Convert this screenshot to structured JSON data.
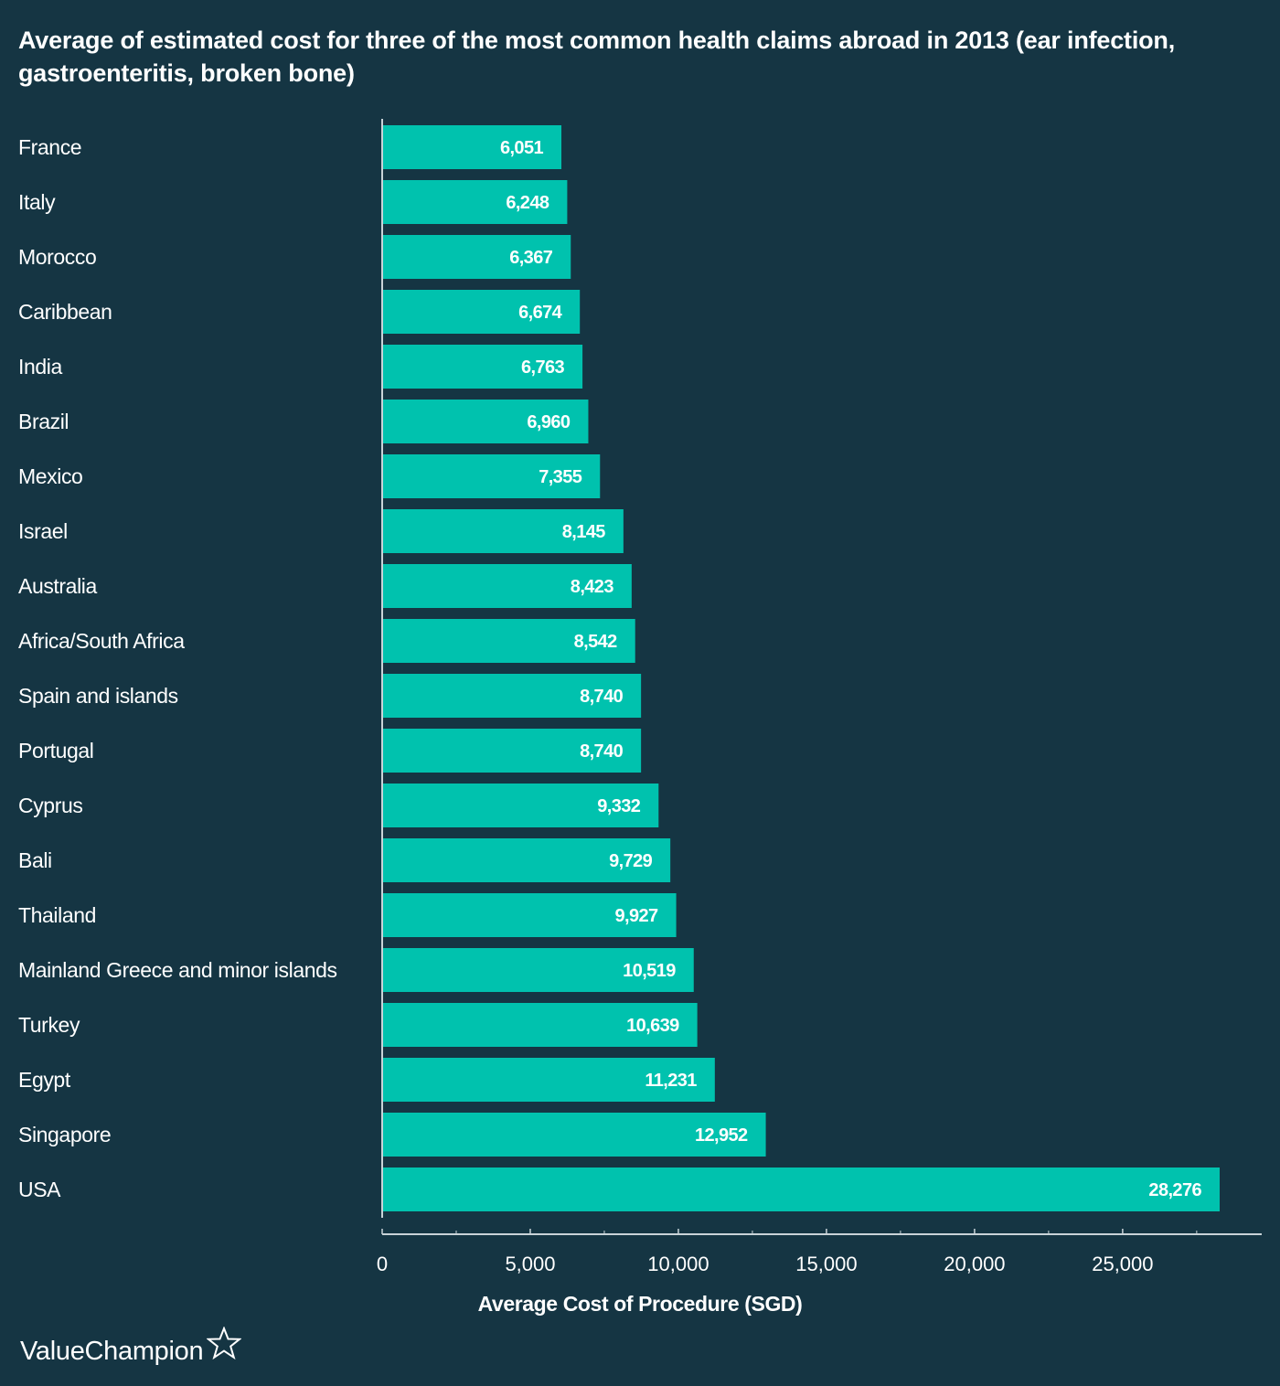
{
  "brand": {
    "name": "ValueChampion",
    "icon": "star-outline-icon"
  },
  "colors": {
    "background": "#153543",
    "bar": "#00C2AE",
    "text": "#ffffff",
    "axis": "#c9d3d8"
  },
  "chart_data": {
    "type": "bar",
    "orientation": "horizontal",
    "title": "Average of estimated cost for three of the most common health claims abroad in 2013 (ear infection, gastroenteritis, broken bone)",
    "xlabel": "Average Cost of Procedure (SGD)",
    "ylabel": "",
    "xlim": [
      0,
      29500
    ],
    "xticks": [
      0,
      5000,
      10000,
      15000,
      20000,
      25000
    ],
    "xtick_labels": [
      "0",
      "5,000",
      "10,000",
      "15,000",
      "20,000",
      "25,000"
    ],
    "grid": false,
    "legend": "none",
    "categories": [
      "France",
      "Italy",
      "Morocco",
      "Caribbean",
      "India",
      "Brazil",
      "Mexico",
      "Israel",
      "Australia",
      "Africa/South Africa",
      "Spain and islands",
      "Portugal",
      "Cyprus",
      "Bali",
      "Thailand",
      "Mainland Greece and minor islands",
      "Turkey",
      "Egypt",
      "Singapore",
      "USA"
    ],
    "values": [
      6051,
      6248,
      6367,
      6674,
      6763,
      6960,
      7355,
      8145,
      8423,
      8542,
      8740,
      8740,
      9332,
      9729,
      9927,
      10519,
      10639,
      11231,
      12952,
      28276
    ],
    "value_labels": [
      "6,051",
      "6,248",
      "6,367",
      "6,674",
      "6,763",
      "6,960",
      "7,355",
      "8,145",
      "8,423",
      "8,542",
      "8,740",
      "8,740",
      "9,332",
      "9,729",
      "9,927",
      "10,519",
      "10,639",
      "11,231",
      "12,952",
      "28,276"
    ]
  }
}
